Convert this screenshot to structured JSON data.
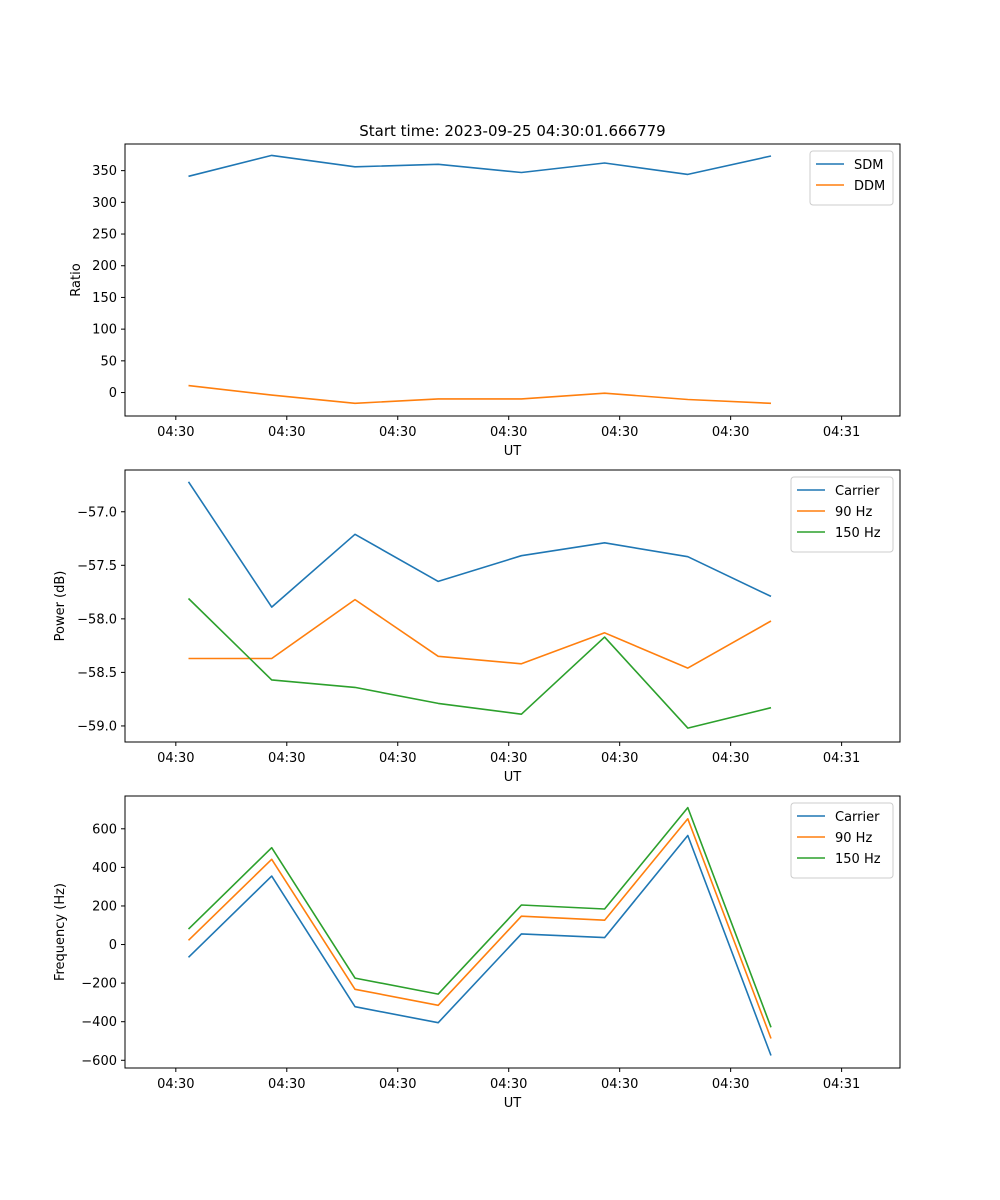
{
  "chart_data": [
    {
      "type": "line",
      "title": "Start time: 2023-09-25 04:30:01.666779",
      "xlabel": "UT",
      "ylabel": "Ratio",
      "xlim": [
        -0.5,
        5.6
      ],
      "ylim": [
        -37,
        392
      ],
      "x_tick_labels": [
        "04:30",
        "04:30",
        "04:30",
        "04:30",
        "04:30",
        "04:30",
        "04:31"
      ],
      "y_ticks": [
        0,
        50,
        100,
        150,
        200,
        250,
        300,
        350
      ],
      "legend": "top-right",
      "x": [
        0,
        0.655,
        1.31,
        1.965,
        2.62,
        3.275,
        3.93,
        4.585
      ],
      "series": [
        {
          "name": "SDM",
          "color": "#1f77b4",
          "values": [
            341,
            374,
            356,
            360,
            347,
            362,
            344,
            373
          ]
        },
        {
          "name": "DDM",
          "color": "#ff7f0e",
          "values": [
            11,
            -4,
            -17,
            -10,
            -10,
            -1,
            -11,
            -17
          ]
        }
      ]
    },
    {
      "type": "line",
      "title": "",
      "xlabel": "UT",
      "ylabel": "Power (dB)",
      "xlim": [
        -0.5,
        5.6
      ],
      "ylim": [
        -59.15,
        -56.61
      ],
      "x_tick_labels": [
        "04:30",
        "04:30",
        "04:30",
        "04:30",
        "04:30",
        "04:30",
        "04:31"
      ],
      "y_ticks": [
        -59.0,
        -58.5,
        -58.0,
        -57.5,
        -57.0
      ],
      "y_tick_labels": [
        "−59.0",
        "−58.5",
        "−58.0",
        "−57.5",
        "−57.0"
      ],
      "legend": "top-right",
      "x": [
        0,
        0.655,
        1.31,
        1.965,
        2.62,
        3.275,
        3.93,
        4.585
      ],
      "series": [
        {
          "name": "Carrier",
          "color": "#1f77b4",
          "values": [
            -56.72,
            -57.89,
            -57.21,
            -57.65,
            -57.41,
            -57.29,
            -57.42,
            -57.79
          ]
        },
        {
          "name": "90 Hz",
          "color": "#ff7f0e",
          "values": [
            -58.37,
            -58.37,
            -57.82,
            -58.35,
            -58.42,
            -58.13,
            -58.46,
            -58.02
          ]
        },
        {
          "name": "150 Hz",
          "color": "#2ca02c",
          "values": [
            -57.81,
            -58.57,
            -58.64,
            -58.79,
            -58.89,
            -58.17,
            -59.02,
            -58.83
          ]
        }
      ]
    },
    {
      "type": "line",
      "title": "",
      "xlabel": "UT",
      "ylabel": "Frequency (Hz)",
      "xlim": [
        -0.5,
        5.6
      ],
      "ylim": [
        -640,
        770
      ],
      "x_tick_labels": [
        "04:30",
        "04:30",
        "04:30",
        "04:30",
        "04:30",
        "04:30",
        "04:31"
      ],
      "y_ticks": [
        -600,
        -400,
        -200,
        0,
        200,
        400,
        600
      ],
      "y_tick_labels": [
        "−600",
        "−400",
        "−200",
        "0",
        "200",
        "400",
        "600"
      ],
      "legend": "top-right",
      "x": [
        0,
        0.655,
        1.31,
        1.965,
        2.62,
        3.275,
        3.93,
        4.585
      ],
      "series": [
        {
          "name": "Carrier",
          "color": "#1f77b4",
          "values": [
            -66,
            355,
            -322,
            -405,
            55,
            36,
            565,
            -575
          ]
        },
        {
          "name": "90 Hz",
          "color": "#ff7f0e",
          "values": [
            22,
            442,
            -232,
            -315,
            147,
            126,
            652,
            -487
          ]
        },
        {
          "name": "150 Hz",
          "color": "#2ca02c",
          "values": [
            80,
            502,
            -174,
            -257,
            205,
            184,
            710,
            -429
          ]
        }
      ]
    }
  ]
}
